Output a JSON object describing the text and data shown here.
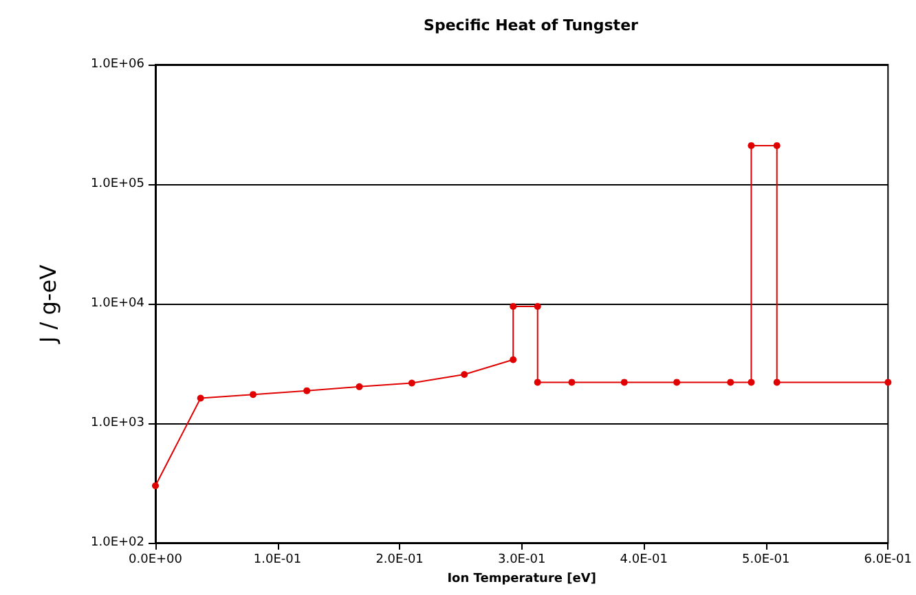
{
  "chart_data": {
    "type": "line",
    "title": "Specific Heat of Tungster",
    "xlabel": "Ion Temperature [eV]",
    "ylabel": "J / g-eV",
    "series": [
      {
        "color": "#e00000",
        "x": [
          0.0,
          0.037,
          0.08,
          0.124,
          0.167,
          0.21,
          0.253,
          0.293,
          0.293,
          0.313,
          0.313,
          0.341,
          0.384,
          0.427,
          0.471,
          0.488,
          0.488,
          0.509,
          0.509,
          0.6
        ],
        "values": [
          300,
          1620,
          1740,
          1870,
          2020,
          2170,
          2560,
          3400,
          9500,
          9500,
          2200,
          2200,
          2200,
          2200,
          2200,
          2200,
          210000,
          210000,
          2200,
          2200
        ]
      }
    ],
    "xlim": [
      0,
      0.6
    ],
    "xticks": [
      {
        "value": 0,
        "label": "0.0E+00"
      },
      {
        "value": 0.1,
        "label": "1.0E-01"
      },
      {
        "value": 0.2,
        "label": "2.0E-01"
      },
      {
        "value": 0.3,
        "label": "3.0E-01"
      },
      {
        "value": 0.4,
        "label": "4.0E-01"
      },
      {
        "value": 0.5,
        "label": "5.0E-01"
      },
      {
        "value": 0.6,
        "label": "6.0E-01"
      }
    ],
    "ylim": [
      100,
      1000000
    ],
    "yticks": [
      {
        "value": 100,
        "label": "1.0E+02"
      },
      {
        "value": 1000,
        "label": "1.0E+03"
      },
      {
        "value": 10000,
        "label": "1.0E+04"
      },
      {
        "value": 100000,
        "label": "1.0E+05"
      },
      {
        "value": 1000000,
        "label": "1.0E+06"
      }
    ],
    "log": "y",
    "grid": "y",
    "marker": "circle",
    "line_style": "solid"
  }
}
